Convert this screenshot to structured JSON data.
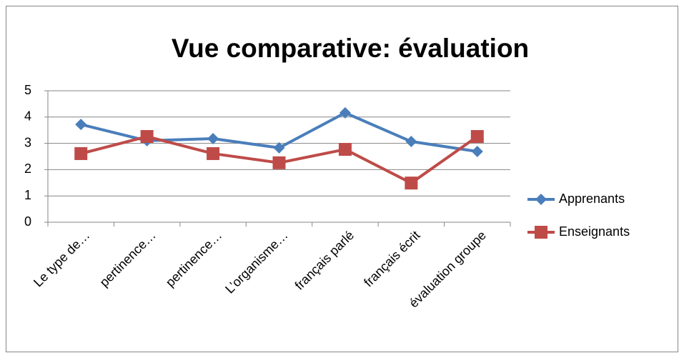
{
  "chart_data": {
    "type": "line",
    "title": "Vue comparative: évaluation",
    "categories": [
      "Le type de…",
      "pertinence…",
      "pertinence…",
      "L’organisme…",
      "français parlé",
      "français écrit",
      "évaluation groupe"
    ],
    "series": [
      {
        "name": "Apprenants",
        "color": "#4a7ebb",
        "marker": "diamond",
        "values": [
          3.72,
          3.1,
          3.18,
          2.83,
          4.16,
          3.07,
          2.69
        ]
      },
      {
        "name": "Enseignants",
        "color": "#be4b48",
        "marker": "square",
        "values": [
          2.61,
          3.26,
          2.61,
          2.26,
          2.77,
          1.49,
          3.26
        ]
      }
    ],
    "ylim": [
      0,
      5
    ],
    "yticks": [
      0,
      1,
      2,
      3,
      4,
      5
    ],
    "grid": true,
    "legend": "right"
  }
}
